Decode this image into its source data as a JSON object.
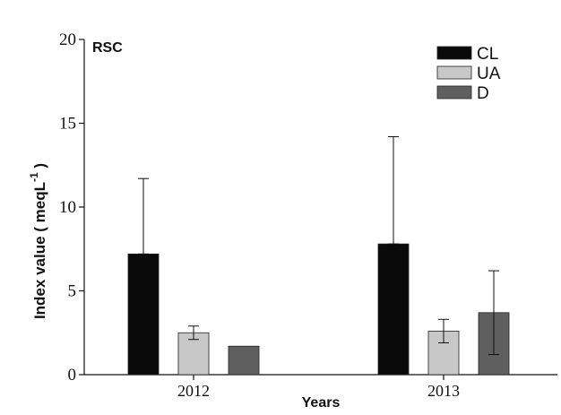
{
  "chart_data": {
    "type": "bar",
    "panel_label": "RSC",
    "categories": [
      "2012",
      "2013"
    ],
    "series": [
      {
        "name": "CL",
        "color": "#0a0a0a",
        "values": [
          7.2,
          7.8
        ],
        "error_upper": [
          11.7,
          14.2
        ],
        "error_lower": [
          7.2,
          7.8
        ]
      },
      {
        "name": "UA",
        "color": "#c8c8c8",
        "values": [
          2.5,
          2.6
        ],
        "error_upper": [
          2.9,
          3.3
        ],
        "error_lower": [
          2.1,
          1.9
        ]
      },
      {
        "name": "D",
        "color": "#5f5f5f",
        "values": [
          1.7,
          3.7
        ],
        "error_upper": [
          1.7,
          6.2
        ],
        "error_lower": [
          1.7,
          1.2
        ]
      }
    ],
    "xlabel": "Years",
    "ylabel_main": "Index value ( meqL",
    "ylabel_sup": "-1",
    "ylabel_tail": " )",
    "ylim": [
      0,
      20
    ],
    "yticks": [
      "0",
      "5",
      "10",
      "15",
      "20"
    ],
    "legend_position": "top-right",
    "grid": false
  }
}
